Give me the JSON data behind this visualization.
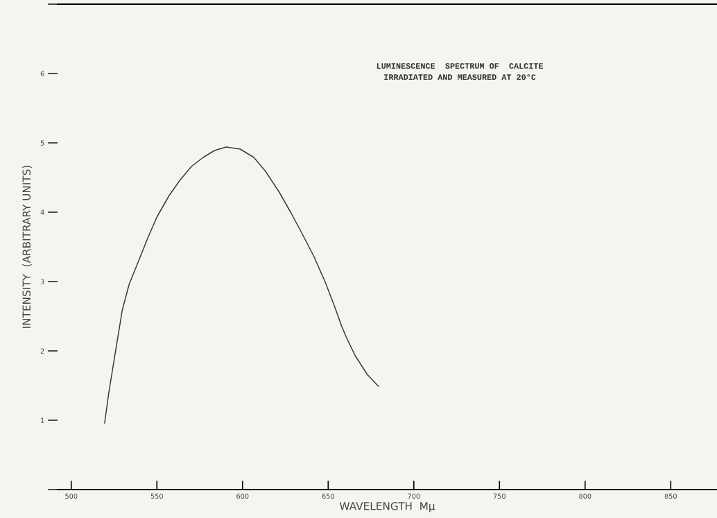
{
  "chart_data": {
    "type": "line",
    "title": "LUMINESCENCE  SPECTRUM OF  CALCITE\nIRRADIATED AND MEASURED AT 20°C",
    "xlabel": "WAVELENGTH  Mμ",
    "ylabel": "INTENSITY  (ARBITRARY UNITS)",
    "x": [
      519.5,
      521.7,
      524.3,
      529.8,
      533.8,
      539.2,
      544.7,
      550,
      556.9,
      563.4,
      570.2,
      577,
      583.7,
      590.4,
      598.6,
      606.6,
      613.4,
      621.4,
      628.3,
      634.8,
      641.7,
      648.3,
      653.9,
      657.8,
      660.7,
      665.8,
      672.8,
      679.3
    ],
    "series": [
      {
        "color": "#3a3a3a",
        "values": [
          0.96,
          1.36,
          1.76,
          2.59,
          2.96,
          3.29,
          3.63,
          3.93,
          4.23,
          4.46,
          4.66,
          4.79,
          4.89,
          4.94,
          4.91,
          4.79,
          4.59,
          4.29,
          3.99,
          3.69,
          3.36,
          2.99,
          2.63,
          2.36,
          2.19,
          1.93,
          1.66,
          1.49
        ]
      }
    ],
    "xlim": [
      492,
      877
    ],
    "ylim": [
      0,
      7
    ],
    "xticks": [
      500,
      550,
      600,
      650,
      700,
      750,
      800,
      850
    ],
    "yticks": [
      {
        "value": 0,
        "label": null
      },
      1,
      2,
      3,
      4,
      5,
      6,
      {
        "value": 7,
        "label": null
      }
    ],
    "grid": false,
    "legend": false,
    "marker": "none",
    "line_style": "solid"
  }
}
